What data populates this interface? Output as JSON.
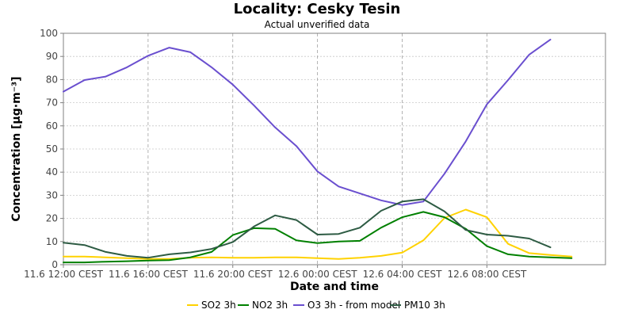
{
  "chart_data": {
    "type": "line",
    "title": "Locality: Cesky Tesin",
    "subtitle": "Actual unverified data",
    "xlabel": "Date and time",
    "ylabel": "Concentration [µg·m⁻³]",
    "ylim": [
      0,
      100
    ],
    "yticks": [
      0,
      10,
      20,
      30,
      40,
      50,
      60,
      70,
      80,
      90,
      100
    ],
    "x_tick_labels": [
      "11.6 12:00 CEST",
      "11.6 16:00 CEST",
      "11.6 20:00 CEST",
      "12.6 00:00 CEST",
      "12.6 04:00 CEST",
      "12.6 08:00 CEST"
    ],
    "x_hours": [
      12,
      13,
      14,
      15,
      16,
      17,
      18,
      19,
      20,
      21,
      22,
      23,
      24,
      25,
      26,
      27,
      28,
      29,
      30,
      31,
      32,
      33,
      34,
      35,
      36
    ],
    "grid": true,
    "legend_position": "bottom",
    "series": [
      {
        "name": "SO2 3h",
        "color": "#ffd200",
        "values": [
          3.5,
          3.5,
          3.2,
          2.8,
          2.5,
          2.5,
          3.0,
          3.2,
          3.0,
          3.0,
          3.2,
          3.2,
          2.8,
          2.5,
          3.0,
          3.8,
          5.2,
          10.5,
          20.2,
          23.8,
          20.5,
          9.0,
          5.0,
          4.2,
          3.5
        ]
      },
      {
        "name": "NO2 3h",
        "color": "#008000",
        "values": [
          1.0,
          1.0,
          1.3,
          1.5,
          1.8,
          2.0,
          3.2,
          5.5,
          12.8,
          15.8,
          15.5,
          10.5,
          9.3,
          10.0,
          10.3,
          16.0,
          20.5,
          22.8,
          20.5,
          15.5,
          8.0,
          4.5,
          3.5,
          3.2,
          2.8
        ]
      },
      {
        "name": "O3 3h - from model",
        "color": "#6a4fcf",
        "values": [
          74.8,
          79.8,
          81.3,
          85.3,
          90.3,
          93.8,
          91.8,
          85.3,
          77.8,
          68.8,
          59.3,
          51.3,
          40.3,
          33.8,
          30.8,
          27.8,
          25.8,
          27.3,
          39.3,
          53.3,
          69.3,
          79.8,
          90.8,
          97.3,
          null
        ]
      },
      {
        "name": "PM10 3h",
        "color": "#2d5b43",
        "values": [
          9.5,
          8.5,
          5.5,
          3.8,
          3.0,
          4.5,
          5.3,
          6.8,
          9.8,
          16.5,
          21.3,
          19.3,
          13.0,
          13.3,
          16.0,
          23.3,
          27.3,
          28.3,
          23.0,
          15.0,
          13.0,
          12.5,
          11.3,
          7.5,
          null
        ]
      }
    ]
  }
}
